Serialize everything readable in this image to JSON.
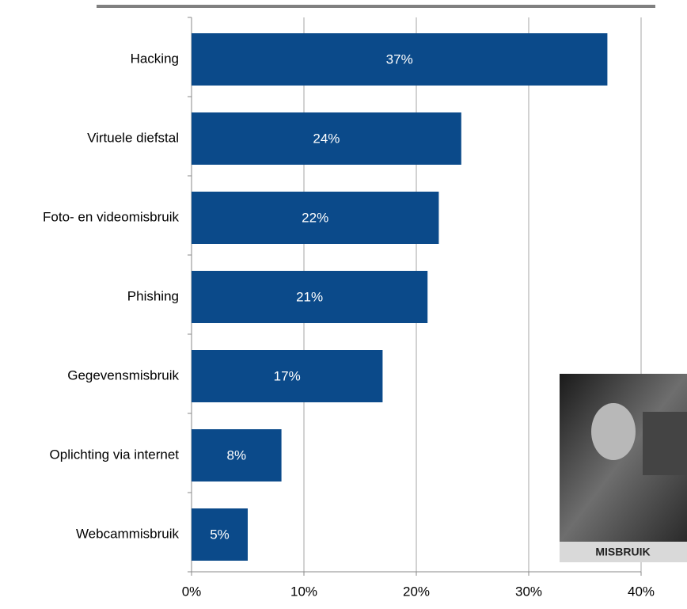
{
  "chart_data": {
    "type": "bar",
    "orientation": "horizontal",
    "categories": [
      "Hacking",
      "Virtuele diefstal",
      "Foto- en videomisbruik",
      "Phishing",
      "Gegevensmisbruik",
      "Oplichting via internet",
      "Webcammisbruik"
    ],
    "values": [
      37,
      24,
      22,
      21,
      17,
      8,
      5
    ],
    "value_labels": [
      "37%",
      "24%",
      "22%",
      "21%",
      "17%",
      "8%",
      "5%"
    ],
    "color": "#0b4a8a",
    "xlim": [
      0,
      40
    ],
    "xticks": [
      {
        "value": 0,
        "label": "0%"
      },
      {
        "value": 10,
        "label": "10%"
      },
      {
        "value": 20,
        "label": "20%"
      },
      {
        "value": 30,
        "label": "30%"
      },
      {
        "value": 40,
        "label": "40%"
      }
    ],
    "grid": true
  },
  "inset": {
    "label": "MISBRUIK"
  }
}
